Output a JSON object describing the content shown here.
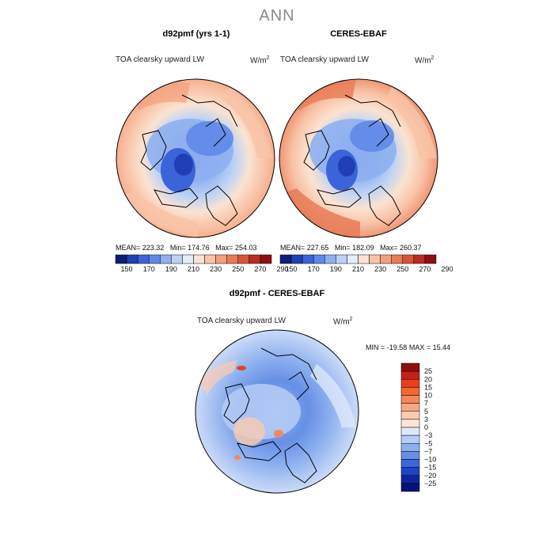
{
  "figure_title": "ANN",
  "chart_data": [
    {
      "type": "heatmap",
      "projection": "north polar stereographic",
      "title": "d92pmf (yrs 1-1)",
      "variable": "TOA clearsky upward LW",
      "units": "W/m",
      "units_exponent": "2",
      "stats": {
        "mean_label": "MEAN=",
        "mean": "223.32",
        "min_label": "Min=",
        "min": "174.76",
        "max_label": "Max=",
        "max": "254.03"
      },
      "colorbar": {
        "levels": [
          "150",
          "170",
          "190",
          "210",
          "230",
          "250",
          "270",
          "290"
        ],
        "colors": [
          "#0a1f7a",
          "#1f3fb5",
          "#3b64d8",
          "#5f88e8",
          "#8fb0f0",
          "#bcd2f5",
          "#e3eefb",
          "#fae3d2",
          "#f9c3a6",
          "#f3a07c",
          "#e87b57",
          "#d7543a",
          "#bb2c22",
          "#8f0f0f"
        ]
      }
    },
    {
      "type": "heatmap",
      "projection": "north polar stereographic",
      "title": "CERES-EBAF",
      "variable": "TOA clearsky upward LW",
      "units": "W/m",
      "units_exponent": "2",
      "stats": {
        "mean_label": "MEAN=",
        "mean": "227.65",
        "min_label": "Min=",
        "min": "182.09",
        "max_label": "Max=",
        "max": "260.37"
      },
      "colorbar": {
        "levels": [
          "150",
          "170",
          "190",
          "210",
          "230",
          "250",
          "270",
          "290"
        ],
        "colors": [
          "#0a1f7a",
          "#1f3fb5",
          "#3b64d8",
          "#5f88e8",
          "#8fb0f0",
          "#bcd2f5",
          "#e3eefb",
          "#fae3d2",
          "#f9c3a6",
          "#f3a07c",
          "#e87b57",
          "#d7543a",
          "#bb2c22",
          "#8f0f0f"
        ]
      }
    },
    {
      "type": "heatmap",
      "projection": "north polar stereographic",
      "title": "d92pmf - CERES-EBAF",
      "variable": "TOA clearsky upward LW",
      "units": "W/m",
      "units_exponent": "2",
      "stats": {
        "min_label": "MIN =",
        "min": "-19.58",
        "max_label": "MAX =",
        "max": "15.44"
      },
      "colorbar": {
        "levels": [
          "25",
          "20",
          "15",
          "10",
          "7",
          "5",
          "3",
          "0",
          "−3",
          "−5",
          "−7",
          "−10",
          "−15",
          "−20",
          "−25"
        ],
        "colors": [
          "#8f0f0f",
          "#c4201a",
          "#e8401f",
          "#f2682f",
          "#f4885a",
          "#f7a882",
          "#fbcbb0",
          "#fde6d6",
          "#dce8fb",
          "#b6ccf4",
          "#8db0ef",
          "#6690e6",
          "#3b68dc",
          "#1f44c4",
          "#0f25a0",
          "#05127a"
        ]
      }
    }
  ]
}
